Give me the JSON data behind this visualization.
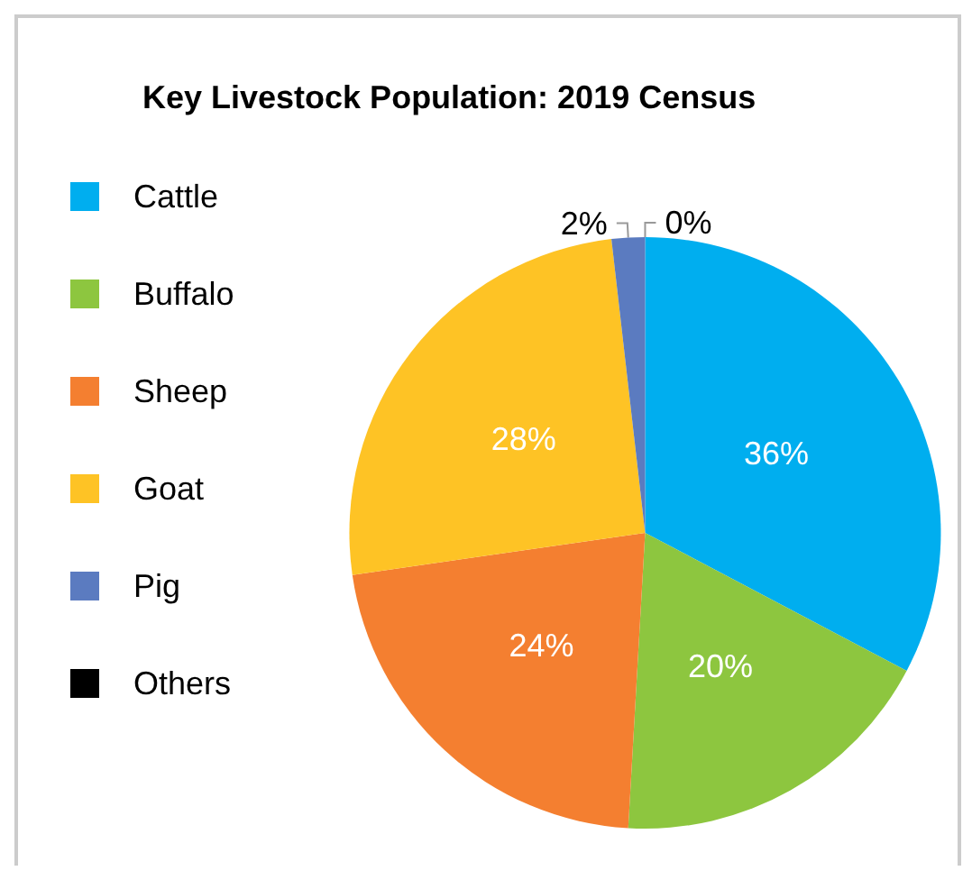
{
  "chart_data": {
    "type": "pie",
    "title": "Key Livestock Population: 2019 Census",
    "categories": [
      "Cattle",
      "Buffalo",
      "Sheep",
      "Goat",
      "Pig",
      "Others"
    ],
    "values": [
      36,
      20,
      24,
      28,
      2,
      0
    ],
    "colors": [
      "#00aeef",
      "#8dc63f",
      "#f47f30",
      "#fec325",
      "#5b7bc0",
      "#000000"
    ],
    "value_labels": [
      "36%",
      "20%",
      "24%",
      "28%",
      "2%",
      "0%"
    ],
    "legend": "left"
  }
}
